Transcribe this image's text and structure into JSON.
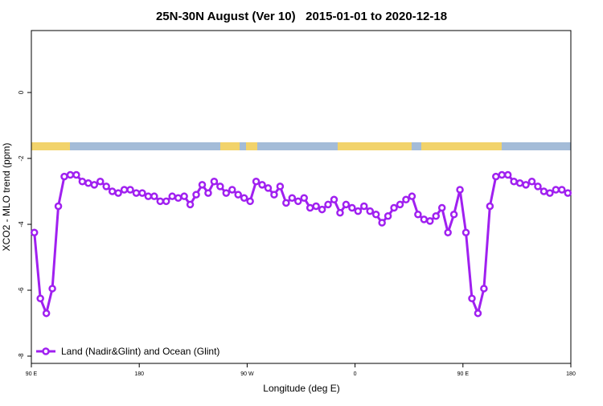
{
  "chart_data": {
    "type": "line",
    "title": "25N-30N August (Ver 10)   2015-01-01 to 2020-12-18",
    "x_label": "Longitude (deg E)",
    "y_label": "XCO2 - MLO trend (ppm)",
    "xlim": [
      90,
      540
    ],
    "ylim": [
      -8.22,
      1.88
    ],
    "xticks": [
      {
        "value": 90,
        "label": "90 E"
      },
      180,
      {
        "value": 270,
        "label": "90 W"
      },
      {
        "value": 360,
        "label": "0"
      },
      {
        "value": 450,
        "label": "90 E"
      },
      {
        "value": 540,
        "label": "180"
      }
    ],
    "yticks": [
      -8,
      -6,
      -4,
      -2,
      0
    ],
    "legend": "bottom-left",
    "x": [
      92.5,
      97.5,
      102.5,
      107.5,
      112.5,
      117.5,
      122.5,
      127.5,
      132.5,
      137.5,
      142.5,
      147.5,
      152.5,
      157.5,
      162.5,
      167.5,
      172.5,
      177.5,
      182.5,
      187.5,
      192.5,
      197.5,
      202.5,
      207.5,
      212.5,
      217.5,
      222.5,
      227.5,
      232.5,
      237.5,
      242.5,
      247.5,
      252.5,
      257.5,
      262.5,
      267.5,
      272.5,
      277.5,
      282.5,
      287.5,
      292.5,
      297.5,
      302.5,
      307.5,
      312.5,
      317.5,
      322.5,
      327.5,
      332.5,
      337.5,
      342.5,
      347.5,
      352.5,
      357.5,
      362.5,
      367.5,
      372.5,
      377.5,
      382.5,
      387.5,
      392.5,
      397.5,
      402.5,
      407.5,
      412.5,
      417.5,
      422.5,
      427.5,
      432.5,
      437.5,
      442.5,
      447.5,
      452.5,
      457.5,
      462.5,
      467.5,
      472.5,
      477.5,
      482.5,
      487.5,
      492.5,
      497.5,
      502.5,
      507.5,
      512.5,
      517.5,
      522.5,
      527.5,
      532.5,
      537.5
    ],
    "series": [
      {
        "name": "Land (Nadir&Glint) and Ocean (Glint)",
        "color": "#a020f0",
        "values": [
          -4.25,
          -6.25,
          -6.7,
          -5.95,
          -3.45,
          -2.55,
          -2.5,
          -2.5,
          -2.7,
          -2.75,
          -2.8,
          -2.7,
          -2.85,
          -3.0,
          -3.05,
          -2.95,
          -2.95,
          -3.05,
          -3.05,
          -3.15,
          -3.15,
          -3.3,
          -3.3,
          -3.15,
          -3.2,
          -3.15,
          -3.4,
          -3.1,
          -2.8,
          -3.05,
          -2.7,
          -2.85,
          -3.05,
          -2.95,
          -3.1,
          -3.2,
          -3.3,
          -2.7,
          -2.8,
          -2.9,
          -3.1,
          -2.85,
          -3.35,
          -3.2,
          -3.3,
          -3.2,
          -3.5,
          -3.45,
          -3.55,
          -3.4,
          -3.25,
          -3.65,
          -3.4,
          -3.5,
          -3.6,
          -3.45,
          -3.6,
          -3.7,
          -3.95,
          -3.75,
          -3.5,
          -3.4,
          -3.25,
          -3.15,
          -3.7,
          -3.85,
          -3.9,
          -3.75,
          -3.5,
          -4.25,
          -3.7,
          -2.95,
          -4.25,
          -6.25,
          -6.7,
          -5.95,
          -3.45,
          -2.55,
          -2.5,
          -2.5,
          -2.7,
          -2.75,
          -2.8,
          -2.7,
          -2.85,
          -3.0,
          -3.05,
          -2.95,
          -2.95,
          -3.05
        ]
      }
    ]
  }
}
